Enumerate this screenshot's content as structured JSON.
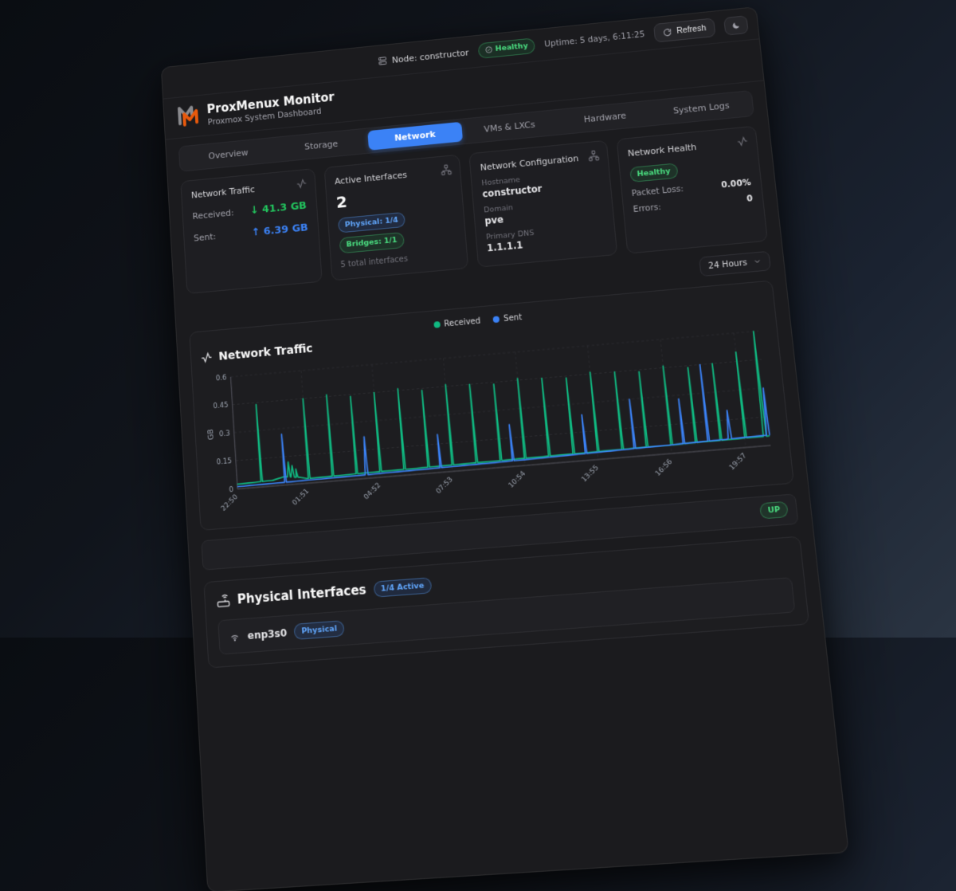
{
  "topbar": {
    "node_label": "Node: constructor",
    "health_badge": "Healthy",
    "uptime": "Uptime: 5 days, 6:11:25",
    "refresh_label": "Refresh"
  },
  "header": {
    "title": "ProxMenux Monitor",
    "subtitle": "Proxmox System Dashboard"
  },
  "tabs": [
    {
      "label": "Overview",
      "active": false
    },
    {
      "label": "Storage",
      "active": false
    },
    {
      "label": "Network",
      "active": true
    },
    {
      "label": "VMs & LXCs",
      "active": false
    },
    {
      "label": "Hardware",
      "active": false
    },
    {
      "label": "System Logs",
      "active": false
    }
  ],
  "cards": {
    "traffic": {
      "title": "Network Traffic",
      "received_label": "Received:",
      "received_value": "↓ 41.3 GB",
      "sent_label": "Sent:",
      "sent_value": "↑ 6.39 GB"
    },
    "interfaces": {
      "title": "Active Interfaces",
      "count": "2",
      "physical_badge": "Physical: 1/4",
      "bridges_badge": "Bridges: 1/1",
      "total_note": "5 total interfaces"
    },
    "config": {
      "title": "Network Configuration",
      "hostname_label": "Hostname",
      "hostname": "constructor",
      "domain_label": "Domain",
      "domain": "pve",
      "dns_label": "Primary DNS",
      "dns": "1.1.1.1"
    },
    "health": {
      "title": "Network Health",
      "status_badge": "Healthy",
      "packet_loss_label": "Packet Loss:",
      "packet_loss": "0.00%",
      "errors_label": "Errors:",
      "errors": "0"
    }
  },
  "time_range": {
    "selected": "24 Hours"
  },
  "chart_card": {
    "title": "Network Traffic"
  },
  "chart_data": {
    "type": "line",
    "title": "Network Traffic",
    "ylabel": "GB",
    "ylim": [
      0,
      0.6
    ],
    "yticks": [
      0,
      0.15,
      0.3,
      0.45,
      0.6
    ],
    "x_span": 22,
    "xticks": [
      {
        "h": 0,
        "label": "22:50"
      },
      {
        "h": 3,
        "label": "01:51"
      },
      {
        "h": 6,
        "label": "04:52"
      },
      {
        "h": 9,
        "label": "07:53"
      },
      {
        "h": 12,
        "label": "10:54"
      },
      {
        "h": 15,
        "label": "13:55"
      },
      {
        "h": 18,
        "label": "16:56"
      },
      {
        "h": 21,
        "label": "19:57"
      }
    ],
    "grid": "dashed",
    "legend_position": "top-center",
    "series": [
      {
        "name": "Received",
        "color": "#10b981",
        "baseline": [
          [
            0,
            0.025
          ],
          [
            1.5,
            0.03
          ],
          [
            2,
            0.045
          ],
          [
            2.6,
            0.035
          ],
          [
            3,
            0.025
          ],
          [
            6,
            0.03
          ],
          [
            10,
            0.035
          ],
          [
            14,
            0.04
          ],
          [
            18,
            0.045
          ],
          [
            22,
            0.05
          ]
        ],
        "spikes": [
          [
            1,
            0.44
          ],
          [
            2.2,
            0.12
          ],
          [
            2.35,
            0.1
          ],
          [
            2.5,
            0.08
          ],
          [
            3,
            0.45
          ],
          [
            4,
            0.46
          ],
          [
            5,
            0.44
          ],
          [
            6,
            0.45
          ],
          [
            7,
            0.46
          ],
          [
            8,
            0.44
          ],
          [
            9,
            0.46
          ],
          [
            10,
            0.45
          ],
          [
            11,
            0.44
          ],
          [
            12,
            0.46
          ],
          [
            13,
            0.45
          ],
          [
            14,
            0.44
          ],
          [
            15,
            0.46
          ],
          [
            16,
            0.45
          ],
          [
            17,
            0.44
          ],
          [
            18,
            0.46
          ],
          [
            19,
            0.44
          ],
          [
            20,
            0.45
          ],
          [
            21,
            0.5
          ],
          [
            21.8,
            0.6
          ]
        ]
      },
      {
        "name": "Sent",
        "color": "#3b82f6",
        "baseline": [
          [
            0,
            0.012
          ],
          [
            6,
            0.02
          ],
          [
            12,
            0.03
          ],
          [
            18,
            0.045
          ],
          [
            22,
            0.055
          ]
        ],
        "spikes": [
          [
            2,
            0.27
          ],
          [
            5.45,
            0.22
          ],
          [
            8.5,
            0.2
          ],
          [
            11.5,
            0.22
          ],
          [
            14.5,
            0.24
          ],
          [
            16.5,
            0.3
          ],
          [
            18.5,
            0.28
          ],
          [
            19.5,
            0.45
          ],
          [
            20.4,
            0.2
          ],
          [
            21.95,
            0.3
          ]
        ]
      }
    ]
  },
  "status_row": {
    "status_badge": "UP"
  },
  "physical": {
    "title": "Physical Interfaces",
    "active_badge": "1/4 Active",
    "rows": [
      {
        "name": "enp3s0",
        "type_badge": "Physical"
      }
    ]
  },
  "colors": {
    "accent_blue": "#3b82f6",
    "value_green": "#22c55e",
    "badge_green_text": "#4ade80",
    "badge_blue_text": "#60a5fa",
    "chart_received": "#10b981",
    "chart_sent": "#3b82f6",
    "logo_orange": "#e8590c",
    "logo_gray": "#8a8a8e"
  }
}
